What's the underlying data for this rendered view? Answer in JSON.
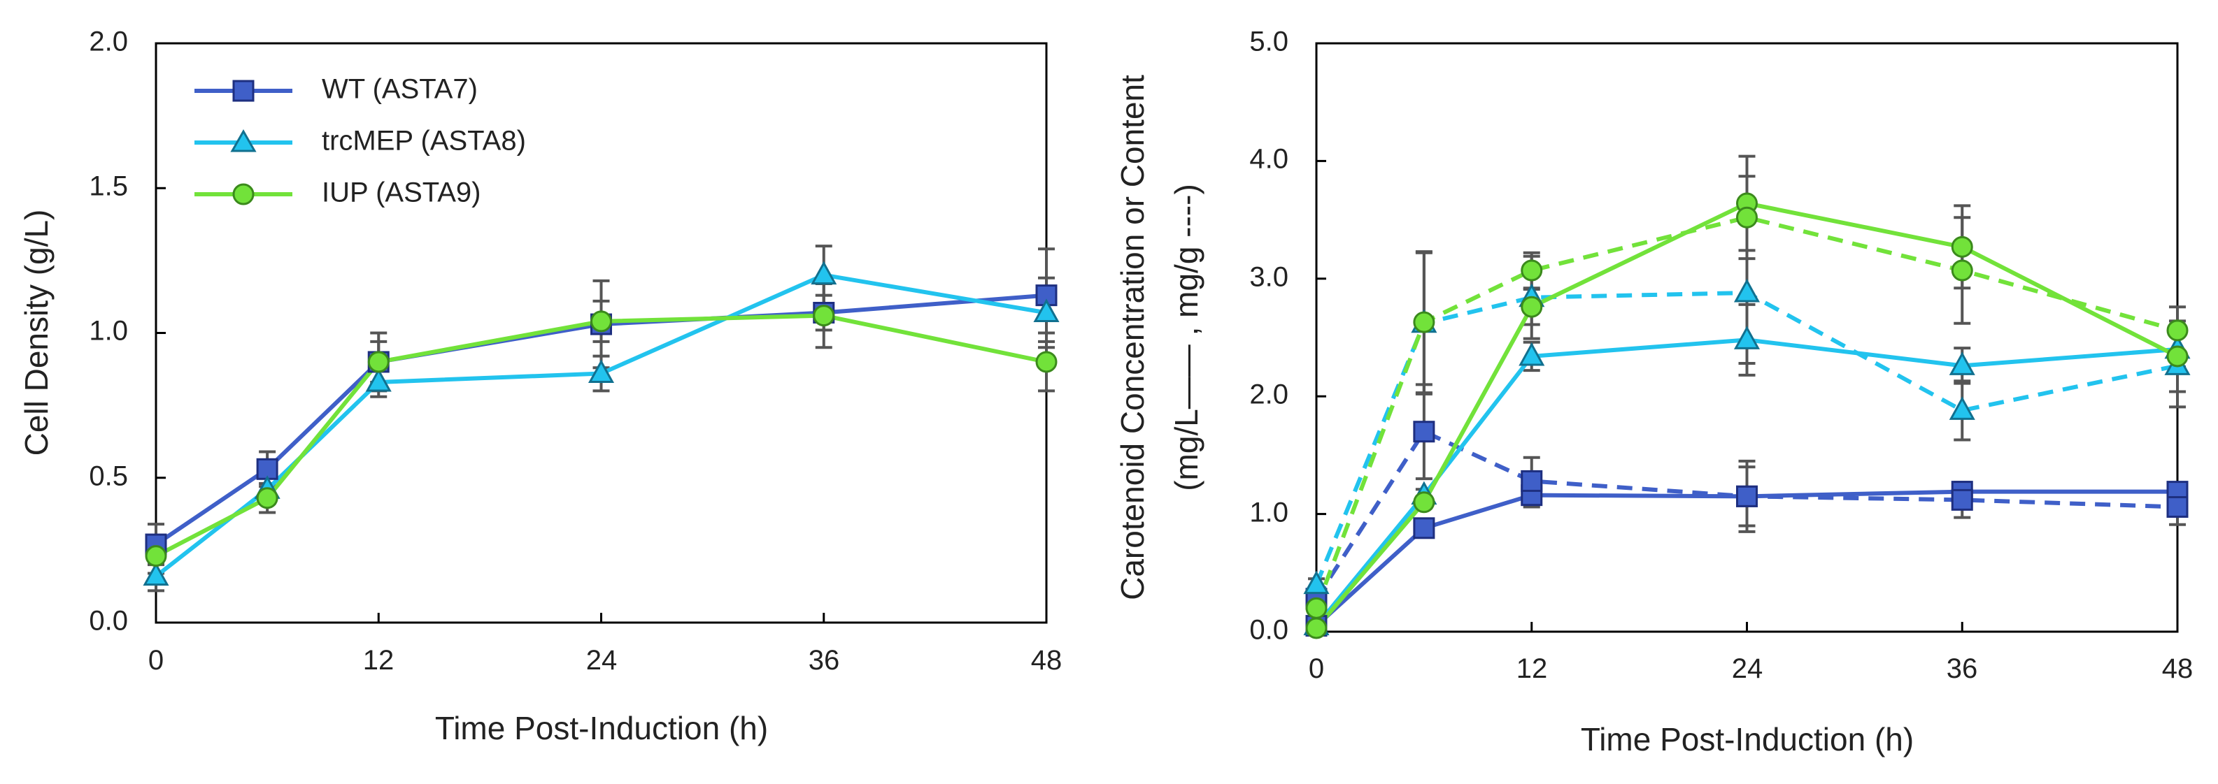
{
  "colors": {
    "wt": "#3F5FC8",
    "trcmep": "#22C3EE",
    "iup": "#72E23A",
    "error": "#555555",
    "axis": "#000000"
  },
  "legend": [
    {
      "key": "wt",
      "label": "WT (ASTA7)",
      "marker": "square"
    },
    {
      "key": "trcmep",
      "label": "trcMEP (ASTA8)",
      "marker": "triangle"
    },
    {
      "key": "iup",
      "label": "IUP (ASTA9)",
      "marker": "circle"
    }
  ],
  "left": {
    "ylabel": "Cell Density (g/L)",
    "xlabel": "Time Post-Induction (h)",
    "yticks": [
      "0.0",
      "0.5",
      "1.0",
      "1.5",
      "2.0"
    ],
    "xticks": [
      "0",
      "12",
      "24",
      "36",
      "48"
    ]
  },
  "right": {
    "ylabel_line1": "Carotenoid Concentration or Content",
    "ylabel_line2": "(mg/L—— , mg/g ----)",
    "xlabel": "Time Post-Induction (h)",
    "yticks": [
      "0.0",
      "1.0",
      "2.0",
      "3.0",
      "4.0",
      "5.0"
    ],
    "xticks": [
      "0",
      "12",
      "24",
      "36",
      "48"
    ]
  },
  "chart_data": [
    {
      "type": "line",
      "title": "",
      "xlabel": "Time Post-Induction (h)",
      "ylabel": "Cell Density (g/L)",
      "xlim": [
        0,
        48
      ],
      "ylim": [
        0,
        2.0
      ],
      "x": [
        0,
        6,
        12,
        24,
        36,
        48
      ],
      "series": [
        {
          "name": "WT (ASTA7)",
          "key": "wt",
          "marker": "square",
          "dash": false,
          "values": [
            0.27,
            0.53,
            0.9,
            1.03,
            1.07,
            1.13
          ],
          "errors": [
            0.07,
            0.06,
            0.1,
            0.15,
            0.06,
            0.16
          ]
        },
        {
          "name": "trcMEP (ASTA8)",
          "key": "trcmep",
          "marker": "triangle",
          "dash": false,
          "values": [
            0.16,
            0.46,
            0.83,
            0.86,
            1.2,
            1.07
          ],
          "errors": [
            0.05,
            0.05,
            0.05,
            0.06,
            0.1,
            0.12
          ]
        },
        {
          "name": "IUP (ASTA9)",
          "key": "iup",
          "marker": "circle",
          "dash": false,
          "values": [
            0.23,
            0.43,
            0.9,
            1.04,
            1.06,
            0.9
          ],
          "errors": [
            0.06,
            0.05,
            0.07,
            0.07,
            0.11,
            0.1
          ]
        }
      ]
    },
    {
      "type": "line",
      "title": "",
      "xlabel": "Time Post-Induction (h)",
      "ylabel": "Carotenoid Concentration or Content (mg/L solid, mg/g dashed)",
      "xlim": [
        0,
        48
      ],
      "ylim": [
        0,
        5.0
      ],
      "x": [
        0,
        6,
        12,
        24,
        36,
        48
      ],
      "series": [
        {
          "name": "WT (ASTA7) mg/L",
          "key": "wt",
          "marker": "square",
          "dash": false,
          "values": [
            0.05,
            0.88,
            1.16,
            1.15,
            1.19,
            1.19
          ],
          "errors": [
            0.03,
            0.05,
            0.1,
            0.25,
            0.05,
            0.05
          ]
        },
        {
          "name": "WT (ASTA7) mg/g",
          "key": "wt",
          "marker": "square",
          "dash": true,
          "values": [
            0.28,
            1.7,
            1.28,
            1.15,
            1.12,
            1.06
          ],
          "errors": [
            0.05,
            0.4,
            0.2,
            0.3,
            0.15,
            0.15
          ]
        },
        {
          "name": "trcMEP (ASTA8) mg/L",
          "key": "trcmep",
          "marker": "triangle",
          "dash": false,
          "values": [
            0.05,
            1.16,
            2.34,
            2.48,
            2.26,
            2.4
          ],
          "errors": [
            0.03,
            0.05,
            0.12,
            0.3,
            0.15,
            0.15
          ]
        },
        {
          "name": "trcMEP (ASTA8) mg/g",
          "key": "trcmep",
          "marker": "triangle",
          "dash": true,
          "values": [
            0.4,
            2.62,
            2.84,
            2.88,
            1.88,
            2.26
          ],
          "errors": [
            0.05,
            0.6,
            0.35,
            0.6,
            0.25,
            0.35
          ]
        },
        {
          "name": "IUP (ASTA9) mg/L",
          "key": "iup",
          "marker": "circle",
          "dash": false,
          "values": [
            0.03,
            1.1,
            2.76,
            3.64,
            3.27,
            2.34
          ],
          "errors": [
            0.03,
            0.05,
            0.15,
            0.4,
            0.35,
            0.3
          ]
        },
        {
          "name": "IUP (ASTA9) mg/g",
          "key": "iup",
          "marker": "circle",
          "dash": true,
          "values": [
            0.2,
            2.63,
            3.07,
            3.52,
            3.07,
            2.56
          ],
          "errors": [
            0.05,
            0.6,
            0.15,
            0.35,
            0.45,
            0.2
          ]
        }
      ]
    }
  ]
}
